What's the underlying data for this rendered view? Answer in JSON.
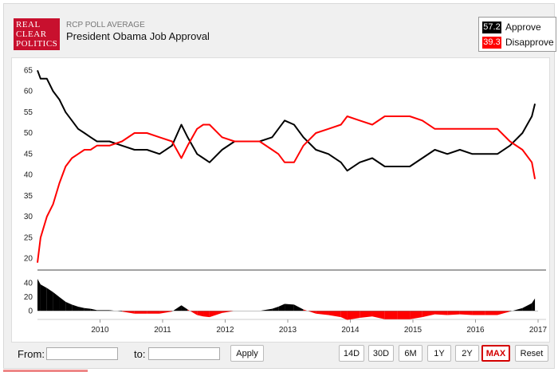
{
  "header": {
    "logo_lines": [
      "REAL",
      "CLEAR",
      "POLITICS"
    ],
    "kicker": "RCP POLL AVERAGE",
    "title": "President Obama Job Approval"
  },
  "legend": {
    "approve": {
      "value": "57.2",
      "label": "Approve",
      "color": "#000000"
    },
    "disapprove": {
      "value": "39.3",
      "label": "Disapprove",
      "color": "#ff0000"
    }
  },
  "controls": {
    "from_label": "From:",
    "to_label": "to:",
    "from_value": "",
    "to_value": "",
    "apply_label": "Apply",
    "ranges": [
      "14D",
      "30D",
      "6M",
      "1Y",
      "2Y",
      "MAX"
    ],
    "active_range": "MAX",
    "reset_label": "Reset"
  },
  "chart_data": {
    "type": "line",
    "x_ticks": [
      "2010",
      "2011",
      "2012",
      "2013",
      "2014",
      "2015",
      "2016",
      "2017"
    ],
    "y_ticks": [
      20,
      25,
      30,
      35,
      40,
      45,
      50,
      55,
      60,
      65
    ],
    "ylim": [
      18,
      66
    ],
    "xlim": [
      2009.05,
      2017.05
    ],
    "grid": false,
    "legend_position": "top-right",
    "series": [
      {
        "name": "Approve",
        "color": "#000000",
        "x": [
          2009.05,
          2009.1,
          2009.2,
          2009.3,
          2009.4,
          2009.5,
          2009.6,
          2009.7,
          2009.8,
          2009.9,
          2010.0,
          2010.2,
          2010.4,
          2010.6,
          2010.8,
          2011.0,
          2011.2,
          2011.35,
          2011.45,
          2011.6,
          2011.7,
          2011.8,
          2012.0,
          2012.2,
          2012.4,
          2012.6,
          2012.8,
          2012.9,
          2013.0,
          2013.15,
          2013.3,
          2013.5,
          2013.7,
          2013.9,
          2014.0,
          2014.2,
          2014.4,
          2014.6,
          2014.8,
          2015.0,
          2015.2,
          2015.4,
          2015.6,
          2015.8,
          2016.0,
          2016.2,
          2016.4,
          2016.6,
          2016.8,
          2016.95,
          2017.0
        ],
        "y": [
          65,
          63,
          63,
          60,
          58,
          55,
          53,
          51,
          50,
          49,
          48,
          48,
          47,
          46,
          46,
          45,
          47,
          52,
          49,
          45,
          44,
          43,
          46,
          48,
          48,
          48,
          49,
          51,
          53,
          52,
          49,
          46,
          45,
          43,
          41,
          43,
          44,
          42,
          42,
          42,
          44,
          46,
          45,
          46,
          45,
          45,
          45,
          47,
          50,
          54,
          57
        ]
      },
      {
        "name": "Disapprove",
        "color": "#ff0000",
        "x": [
          2009.05,
          2009.1,
          2009.2,
          2009.3,
          2009.4,
          2009.5,
          2009.6,
          2009.7,
          2009.8,
          2009.9,
          2010.0,
          2010.2,
          2010.4,
          2010.6,
          2010.8,
          2011.0,
          2011.2,
          2011.35,
          2011.45,
          2011.6,
          2011.7,
          2011.8,
          2012.0,
          2012.2,
          2012.4,
          2012.6,
          2012.8,
          2012.9,
          2013.0,
          2013.15,
          2013.3,
          2013.5,
          2013.7,
          2013.9,
          2014.0,
          2014.2,
          2014.4,
          2014.6,
          2014.8,
          2015.0,
          2015.2,
          2015.4,
          2015.6,
          2015.8,
          2016.0,
          2016.2,
          2016.4,
          2016.6,
          2016.8,
          2016.95,
          2017.0
        ],
        "y": [
          19,
          25,
          30,
          33,
          38,
          42,
          44,
          45,
          46,
          46,
          47,
          47,
          48,
          50,
          50,
          49,
          48,
          44,
          47,
          51,
          52,
          52,
          49,
          48,
          48,
          48,
          46,
          45,
          43,
          43,
          47,
          50,
          51,
          52,
          54,
          53,
          52,
          54,
          54,
          54,
          53,
          51,
          51,
          51,
          51,
          51,
          51,
          48,
          46,
          43,
          39
        ]
      }
    ],
    "spread": {
      "y_ticks": [
        0,
        20,
        40
      ],
      "ylim": [
        -10,
        45
      ]
    }
  }
}
